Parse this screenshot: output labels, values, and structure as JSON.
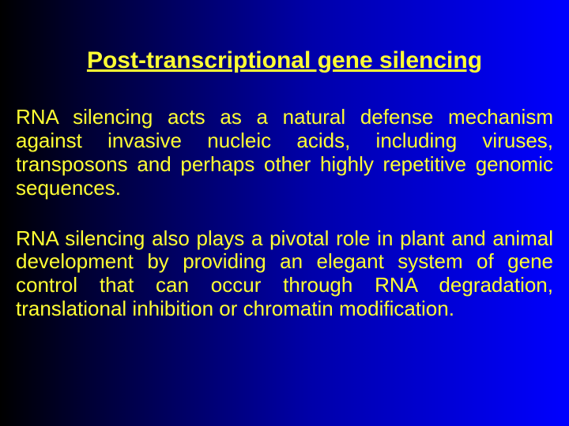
{
  "title": {
    "text": "Post-transcriptional gene silencing",
    "color": "#ffff33",
    "fontsize": 30
  },
  "paragraphs": [
    {
      "text": "RNA silencing acts as a natural defense mechanism against invasive nucleic acids, including viruses, transposons and perhaps other highly repetitive genomic sequences.",
      "color": "#ffff33",
      "fontsize": 26
    },
    {
      "text": "RNA silencing also plays a pivotal role in plant and animal development by providing an elegant system of gene control that can occur through RNA degradation, translational inhibition or chromatin modification.",
      "color": "#ffff33",
      "fontsize": 26
    }
  ],
  "background": {
    "gradient_start": "#000000",
    "gradient_end": "#0000ff"
  }
}
